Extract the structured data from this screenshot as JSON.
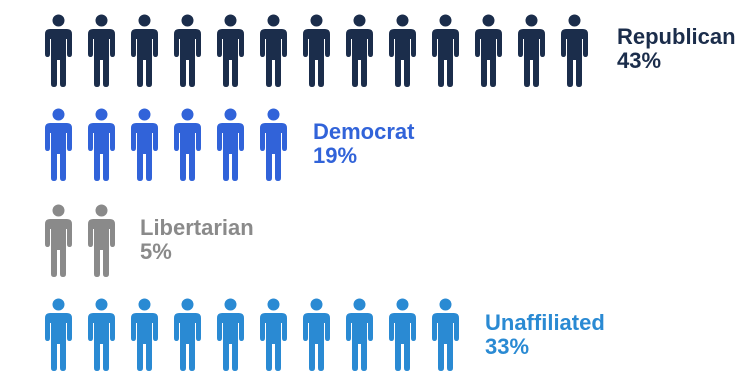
{
  "colors": {
    "republican": "#1b2d4b",
    "democrat": "#3163d9",
    "libertarian": "#8a8a8a",
    "unaffiliated": "#2a8ad3"
  },
  "icon": "person-icon",
  "chart_data": {
    "type": "pictograph",
    "unit_percent_per_icon": 3.1,
    "series": [
      {
        "name": "Republican",
        "value": 43,
        "label": "43%",
        "icons": 13,
        "color": "#1b2d4b"
      },
      {
        "name": "Democrat",
        "value": 19,
        "label": "19%",
        "icons": 6,
        "color": "#3163d9"
      },
      {
        "name": "Libertarian",
        "value": 5,
        "label": "5%",
        "icons": 2,
        "color": "#8a8a8a"
      },
      {
        "name": "Unaffiliated",
        "value": 33,
        "label": "33%",
        "icons": 10,
        "color": "#2a8ad3"
      }
    ]
  }
}
